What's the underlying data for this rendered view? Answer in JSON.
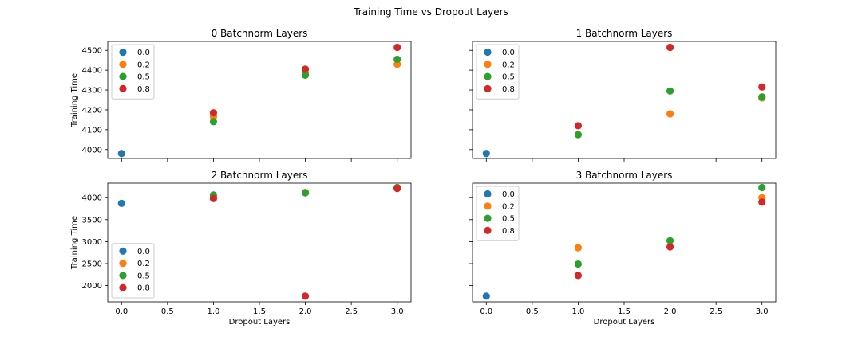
{
  "figure": {
    "suptitle": "Training Time vs Dropout Layers"
  },
  "chart_data": [
    {
      "type": "scatter",
      "title": "0 Batchnorm Layers",
      "xlabel": "",
      "ylabel": "Training Time",
      "xlim": [
        -0.15,
        3.15
      ],
      "ylim": [
        3955,
        4545
      ],
      "xticks": [
        0.0,
        0.5,
        1.0,
        1.5,
        2.0,
        2.5,
        3.0
      ],
      "xtick_labels": [],
      "yticks": [
        4000,
        4100,
        4200,
        4300,
        4400,
        4500
      ],
      "ytick_labels": [
        "4000",
        "4100",
        "4200",
        "4300",
        "4400",
        "4500"
      ],
      "legend_title": "",
      "legend": {
        "loc": "upper-left",
        "entries": [
          "0.0",
          "0.2",
          "0.5",
          "0.8"
        ]
      },
      "series": [
        {
          "name": "0.0",
          "color": "#1f77b4",
          "points": [
            [
              0,
              3980
            ]
          ]
        },
        {
          "name": "0.2",
          "color": "#ff7f0e",
          "points": [
            [
              1,
              4165
            ],
            [
              2,
              4385
            ],
            [
              3,
              4430
            ]
          ]
        },
        {
          "name": "0.5",
          "color": "#2ca02c",
          "points": [
            [
              1,
              4140
            ],
            [
              2,
              4375
            ],
            [
              3,
              4455
            ]
          ]
        },
        {
          "name": "0.8",
          "color": "#d62728",
          "points": [
            [
              1,
              4185
            ],
            [
              2,
              4405
            ],
            [
              3,
              4515
            ]
          ]
        }
      ]
    },
    {
      "type": "scatter",
      "title": "1 Batchnorm Layers",
      "xlabel": "",
      "ylabel": "",
      "xlim": [
        -0.15,
        3.15
      ],
      "ylim": [
        3955,
        4545
      ],
      "xticks": [
        0.0,
        0.5,
        1.0,
        1.5,
        2.0,
        2.5,
        3.0
      ],
      "xtick_labels": [],
      "yticks": [
        4000,
        4100,
        4200,
        4300,
        4400,
        4500
      ],
      "ytick_labels": [],
      "legend_title": "",
      "legend": {
        "loc": "upper-left",
        "entries": [
          "0.0",
          "0.2",
          "0.5",
          "0.8"
        ]
      },
      "series": [
        {
          "name": "0.0",
          "color": "#1f77b4",
          "points": [
            [
              0,
              3980
            ]
          ]
        },
        {
          "name": "0.2",
          "color": "#ff7f0e",
          "points": [
            [
              2,
              4180
            ],
            [
              3,
              4260
            ]
          ]
        },
        {
          "name": "0.5",
          "color": "#2ca02c",
          "points": [
            [
              1,
              4075
            ],
            [
              2,
              4295
            ],
            [
              3,
              4265
            ]
          ]
        },
        {
          "name": "0.8",
          "color": "#d62728",
          "points": [
            [
              1,
              4120
            ],
            [
              2,
              4515
            ],
            [
              3,
              4315
            ]
          ]
        }
      ]
    },
    {
      "type": "scatter",
      "title": "2 Batchnorm Layers",
      "xlabel": "Dropout Layers",
      "ylabel": "Training Time",
      "xlim": [
        -0.15,
        3.15
      ],
      "ylim": [
        1630,
        4330
      ],
      "xticks": [
        0.0,
        0.5,
        1.0,
        1.5,
        2.0,
        2.5,
        3.0
      ],
      "xtick_labels": [
        "0.0",
        "0.5",
        "1.0",
        "1.5",
        "2.0",
        "2.5",
        "3.0"
      ],
      "yticks": [
        2000,
        2500,
        3000,
        3500,
        4000
      ],
      "ytick_labels": [
        "2000",
        "2500",
        "3000",
        "3500",
        "4000"
      ],
      "legend_title": "",
      "legend": {
        "loc": "lower-left",
        "entries": [
          "0.0",
          "0.2",
          "0.5",
          "0.8"
        ]
      },
      "series": [
        {
          "name": "0.0",
          "color": "#1f77b4",
          "points": [
            [
              0,
              3870
            ]
          ]
        },
        {
          "name": "0.2",
          "color": "#ff7f0e",
          "points": [
            [
              1,
              4030
            ],
            [
              2,
              4120
            ],
            [
              3,
              4230
            ]
          ]
        },
        {
          "name": "0.5",
          "color": "#2ca02c",
          "points": [
            [
              1,
              4060
            ],
            [
              2,
              4110
            ],
            [
              3,
              4230
            ]
          ]
        },
        {
          "name": "0.8",
          "color": "#d62728",
          "points": [
            [
              1,
              3980
            ],
            [
              2,
              1760
            ],
            [
              3,
              4210
            ]
          ]
        }
      ]
    },
    {
      "type": "scatter",
      "title": "3 Batchnorm Layers",
      "xlabel": "Dropout Layers",
      "ylabel": "",
      "xlim": [
        -0.15,
        3.15
      ],
      "ylim": [
        1630,
        4330
      ],
      "xticks": [
        0.0,
        0.5,
        1.0,
        1.5,
        2.0,
        2.5,
        3.0
      ],
      "xtick_labels": [
        "0.0",
        "0.5",
        "1.0",
        "1.5",
        "2.0",
        "2.5",
        "3.0"
      ],
      "yticks": [
        2000,
        2500,
        3000,
        3500,
        4000
      ],
      "ytick_labels": [],
      "legend_title": "",
      "legend": {
        "loc": "upper-left",
        "entries": [
          "0.0",
          "0.2",
          "0.5",
          "0.8"
        ]
      },
      "series": [
        {
          "name": "0.0",
          "color": "#1f77b4",
          "points": [
            [
              0,
              1760
            ]
          ]
        },
        {
          "name": "0.2",
          "color": "#ff7f0e",
          "points": [
            [
              1,
              2860
            ],
            [
              3,
              4000
            ]
          ]
        },
        {
          "name": "0.5",
          "color": "#2ca02c",
          "points": [
            [
              1,
              2490
            ],
            [
              2,
              3020
            ],
            [
              3,
              4230
            ]
          ]
        },
        {
          "name": "0.8",
          "color": "#d62728",
          "points": [
            [
              1,
              2230
            ],
            [
              2,
              2880
            ],
            [
              3,
              3900
            ]
          ]
        }
      ]
    }
  ]
}
